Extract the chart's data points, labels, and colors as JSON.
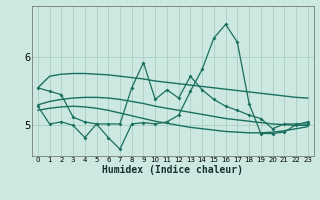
{
  "xlabel": "Humidex (Indice chaleur)",
  "xlim": [
    -0.5,
    23.5
  ],
  "ylim": [
    4.55,
    6.75
  ],
  "yticks": [
    5,
    6
  ],
  "xtick_labels": [
    "0",
    "1",
    "2",
    "3",
    "4",
    "5",
    "6",
    "7",
    "8",
    "9",
    "10",
    "11",
    "12",
    "13",
    "14",
    "15",
    "16",
    "17",
    "18",
    "19",
    "20",
    "21",
    "22",
    "23"
  ],
  "bg_color": "#cce8e0",
  "grid_color": "#aacfc5",
  "line_color": "#1a7060",
  "lines": [
    {
      "x": [
        0,
        1,
        2,
        3,
        4,
        5,
        6,
        7,
        8,
        9,
        10,
        11,
        12,
        13,
        14,
        15,
        16,
        17,
        18,
        19,
        20,
        21,
        22,
        23
      ],
      "y": [
        5.55,
        5.72,
        5.75,
        5.76,
        5.76,
        5.75,
        5.74,
        5.72,
        5.7,
        5.68,
        5.65,
        5.63,
        5.61,
        5.59,
        5.57,
        5.55,
        5.53,
        5.51,
        5.49,
        5.47,
        5.45,
        5.43,
        5.41,
        5.4
      ],
      "marker": false,
      "lw": 1.0
    },
    {
      "x": [
        0,
        1,
        2,
        3,
        4,
        5,
        6,
        7,
        8,
        9,
        10,
        11,
        12,
        13,
        14,
        15,
        16,
        17,
        18,
        19,
        20,
        21,
        22,
        23
      ],
      "y": [
        5.3,
        5.35,
        5.38,
        5.4,
        5.41,
        5.41,
        5.4,
        5.38,
        5.35,
        5.32,
        5.28,
        5.25,
        5.22,
        5.19,
        5.16,
        5.13,
        5.1,
        5.08,
        5.06,
        5.04,
        5.02,
        5.01,
        5.0,
        5.0
      ],
      "marker": false,
      "lw": 1.0
    },
    {
      "x": [
        0,
        1,
        2,
        3,
        4,
        5,
        6,
        7,
        8,
        9,
        10,
        11,
        12,
        13,
        14,
        15,
        16,
        17,
        18,
        19,
        20,
        21,
        22,
        23
      ],
      "y": [
        5.22,
        5.25,
        5.27,
        5.28,
        5.27,
        5.25,
        5.22,
        5.18,
        5.14,
        5.1,
        5.06,
        5.03,
        5.0,
        4.97,
        4.95,
        4.93,
        4.91,
        4.9,
        4.89,
        4.89,
        4.9,
        4.92,
        4.95,
        4.98
      ],
      "marker": false,
      "lw": 1.0
    },
    {
      "x": [
        0,
        1,
        2,
        3,
        4,
        5,
        6,
        7,
        8,
        9,
        10,
        11,
        12,
        13,
        14,
        15,
        16,
        17,
        18,
        19,
        20,
        21,
        22,
        23
      ],
      "y": [
        5.55,
        5.5,
        5.45,
        5.12,
        5.05,
        5.02,
        4.82,
        4.65,
        5.02,
        5.04,
        5.02,
        5.05,
        5.15,
        5.5,
        5.82,
        6.28,
        6.48,
        6.22,
        5.32,
        4.88,
        4.88,
        4.9,
        5.01,
        5.05
      ],
      "marker": true,
      "lw": 0.9
    },
    {
      "x": [
        0,
        1,
        2,
        3,
        4,
        5,
        6,
        7,
        8,
        9,
        10,
        11,
        12,
        13,
        14,
        15,
        16,
        17,
        18,
        19,
        20,
        21,
        22,
        23
      ],
      "y": [
        5.28,
        5.02,
        5.05,
        5.0,
        4.82,
        5.02,
        5.02,
        5.02,
        5.55,
        5.92,
        5.38,
        5.52,
        5.4,
        5.72,
        5.52,
        5.38,
        5.28,
        5.22,
        5.15,
        5.1,
        4.95,
        5.02,
        5.02,
        5.02
      ],
      "marker": true,
      "lw": 0.9
    }
  ]
}
